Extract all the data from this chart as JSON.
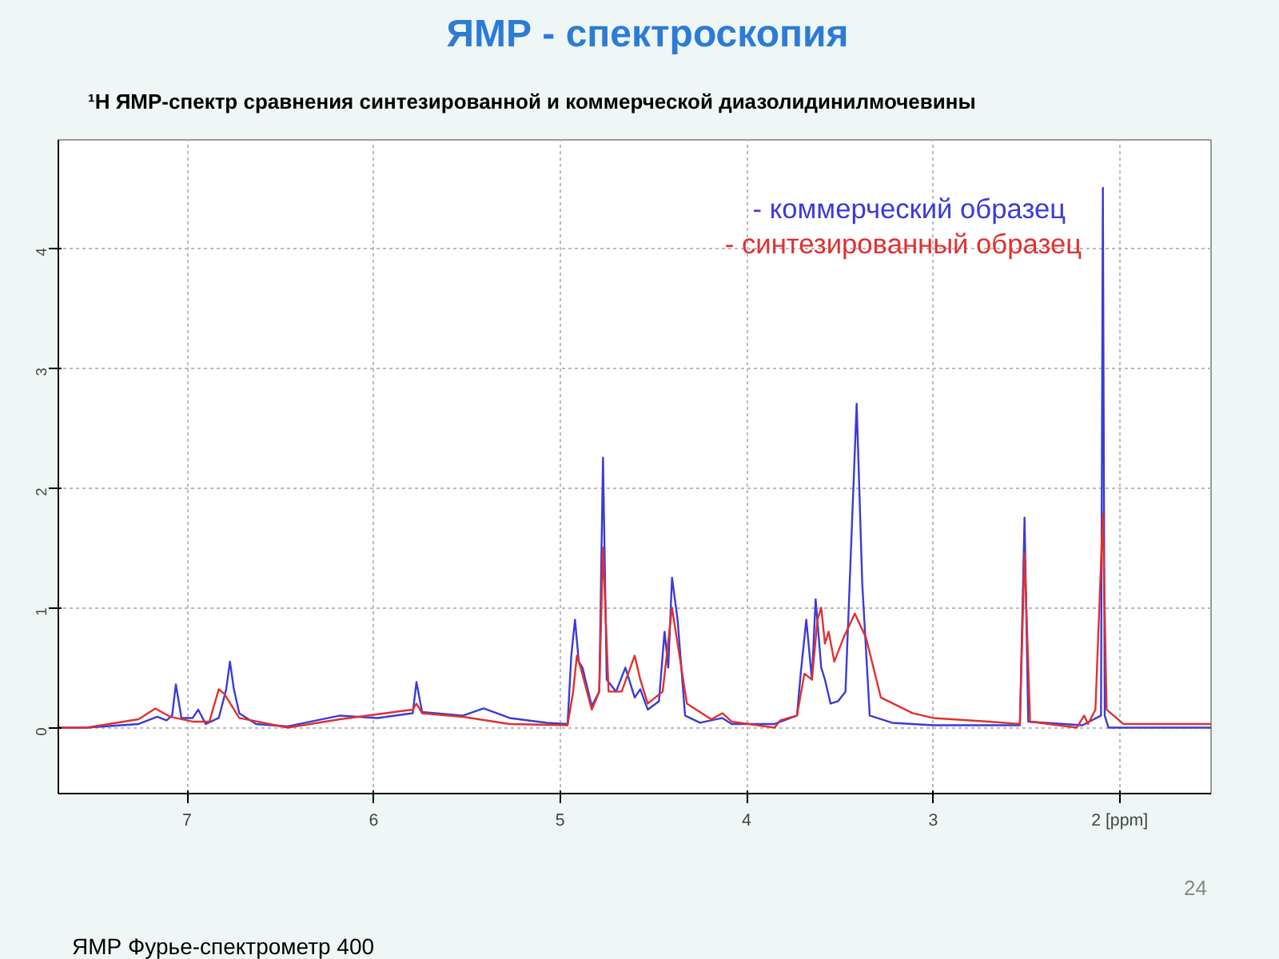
{
  "chart_data": {
    "type": "line",
    "title": "ЯМР - спектроскопия",
    "subtitle": "¹H ЯМР-спектр сравнения синтезированной и коммерческой диазолидинилмочевины",
    "xlim": [
      7.69,
      1.51
    ],
    "ylim": [
      -0.55,
      4.9
    ],
    "xticks": [
      7,
      6,
      5,
      4,
      3,
      {
        "value": 2,
        "label": "2 [ppm]"
      }
    ],
    "yticks": [
      0,
      1,
      2,
      3,
      4
    ],
    "grid": true,
    "marker": "none",
    "line_style": "solid",
    "annotations": [
      "ЯМР Фурье-спектрометр 400",
      "24"
    ],
    "series": [
      {
        "name": "- коммерческий образец",
        "color": "#3b3bd6",
        "x": [
          7.69,
          7.54,
          7.26,
          7.16,
          7.11,
          7.08,
          7.06,
          7.03,
          6.97,
          6.94,
          6.9,
          6.83,
          6.79,
          6.77,
          6.75,
          6.72,
          6.63,
          6.46,
          6.18,
          5.98,
          5.79,
          5.77,
          5.74,
          5.52,
          5.41,
          5.27,
          5.07,
          4.96,
          4.94,
          4.92,
          4.9,
          4.88,
          4.83,
          4.79,
          4.77,
          4.75,
          4.7,
          4.65,
          4.6,
          4.57,
          4.53,
          4.47,
          4.44,
          4.42,
          4.4,
          4.37,
          4.33,
          4.25,
          4.13,
          4.08,
          3.85,
          3.73,
          3.71,
          3.68,
          3.65,
          3.63,
          3.6,
          3.58,
          3.55,
          3.51,
          3.47,
          3.44,
          3.41,
          3.38,
          3.34,
          3.22,
          3.0,
          2.535,
          2.51,
          2.49,
          2.2,
          2.1,
          2.09,
          2.08,
          2.06,
          1.75,
          1.51
        ],
        "values": [
          0,
          0,
          0.03,
          0.09,
          0.06,
          0.1,
          0.36,
          0.08,
          0.08,
          0.15,
          0.03,
          0.08,
          0.32,
          0.55,
          0.33,
          0.12,
          0.03,
          0.01,
          0.1,
          0.08,
          0.12,
          0.38,
          0.13,
          0.1,
          0.16,
          0.08,
          0.04,
          0.03,
          0.6,
          0.9,
          0.55,
          0.5,
          0.18,
          0.3,
          2.25,
          0.4,
          0.3,
          0.5,
          0.25,
          0.32,
          0.15,
          0.22,
          0.8,
          0.5,
          1.25,
          0.9,
          0.1,
          0.04,
          0.08,
          0.03,
          0.03,
          0.1,
          0.45,
          0.9,
          0.4,
          1.07,
          0.5,
          0.4,
          0.2,
          0.22,
          0.3,
          1.5,
          2.7,
          1.2,
          0.1,
          0.04,
          0.02,
          0.02,
          1.75,
          0.05,
          0.02,
          0.1,
          4.5,
          0.1,
          0,
          0,
          0
        ]
      },
      {
        "name": "- синтезированный образец",
        "color": "#e03030",
        "x": [
          7.69,
          7.54,
          7.26,
          7.17,
          7.09,
          6.97,
          6.88,
          6.83,
          6.8,
          6.72,
          6.46,
          6.18,
          5.79,
          5.77,
          5.74,
          5.52,
          5.27,
          4.96,
          4.93,
          4.91,
          4.89,
          4.83,
          4.79,
          4.77,
          4.74,
          4.67,
          4.6,
          4.57,
          4.53,
          4.45,
          4.4,
          4.36,
          4.32,
          4.19,
          4.13,
          4.08,
          3.85,
          3.82,
          3.73,
          3.69,
          3.65,
          3.62,
          3.6,
          3.58,
          3.56,
          3.53,
          3.48,
          3.42,
          3.36,
          3.28,
          3.11,
          3.0,
          2.7,
          2.535,
          2.51,
          2.48,
          2.23,
          2.19,
          2.17,
          2.13,
          2.09,
          2.07,
          1.98,
          1.51
        ],
        "values": [
          0,
          0,
          0.07,
          0.16,
          0.09,
          0.05,
          0.05,
          0.32,
          0.28,
          0.08,
          0,
          0.07,
          0.15,
          0.2,
          0.12,
          0.09,
          0.03,
          0.02,
          0.3,
          0.6,
          0.5,
          0.15,
          0.3,
          1.5,
          0.3,
          0.3,
          0.6,
          0.4,
          0.2,
          0.3,
          1.0,
          0.6,
          0.2,
          0.07,
          0.12,
          0.05,
          0,
          0.06,
          0.1,
          0.45,
          0.4,
          0.9,
          1.0,
          0.7,
          0.8,
          0.55,
          0.75,
          0.95,
          0.75,
          0.25,
          0.12,
          0.08,
          0.05,
          0.03,
          1.45,
          0.05,
          0,
          0.1,
          0.03,
          0.15,
          1.78,
          0.15,
          0.03,
          0.03
        ]
      }
    ]
  }
}
